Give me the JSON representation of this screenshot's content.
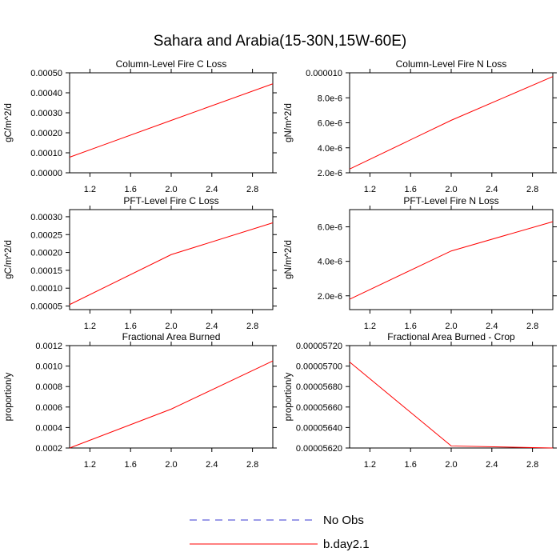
{
  "figure": {
    "title": "Sahara and Arabia(15-30N,15W-60E)"
  },
  "legend": {
    "entries": [
      {
        "label": "No Obs",
        "color": "#3a3ad0",
        "style": "dashed"
      },
      {
        "label": "b.day2.1",
        "color": "#ff0000",
        "style": "solid"
      }
    ]
  },
  "chart_data": [
    {
      "type": "line",
      "title": "Column-Level Fire C Loss",
      "xlabel": "",
      "ylabel": "gC/m^2/d",
      "xlim": [
        1.0,
        3.0
      ],
      "ylim": [
        0.0,
        0.0005
      ],
      "x_ticks": [
        1.2,
        1.6,
        2.0,
        2.4,
        2.8
      ],
      "x_tick_labels": [
        "1.2",
        "1.6",
        "2.0",
        "2.4",
        "2.8"
      ],
      "y_ticks": [
        0.0,
        0.0001,
        0.0002,
        0.0003,
        0.0004,
        0.0005
      ],
      "y_tick_labels": [
        "0.00000",
        "0.00010",
        "0.00020",
        "0.00030",
        "0.00040",
        "0.00050"
      ],
      "series": [
        {
          "name": "b.day2.1",
          "color": "#ff0000",
          "x": [
            1,
            2,
            3
          ],
          "values": [
            7.8e-05,
            0.000262,
            0.000445
          ]
        }
      ]
    },
    {
      "type": "line",
      "title": "Column-Level Fire N Loss",
      "xlabel": "",
      "ylabel": "gN/m^2/d",
      "xlim": [
        1.0,
        3.0
      ],
      "ylim": [
        2e-06,
        1e-05
      ],
      "x_ticks": [
        1.2,
        1.6,
        2.0,
        2.4,
        2.8
      ],
      "x_tick_labels": [
        "1.2",
        "1.6",
        "2.0",
        "2.4",
        "2.8"
      ],
      "y_ticks": [
        2e-06,
        4e-06,
        6e-06,
        8e-06,
        1e-05
      ],
      "y_tick_labels": [
        "2.0e-6",
        "4.0e-6",
        "6.0e-6",
        "8.0e-6",
        "0.000010"
      ],
      "series": [
        {
          "name": "b.day2.1",
          "color": "#ff0000",
          "x": [
            1,
            2,
            3
          ],
          "values": [
            2.3e-06,
            6.2e-06,
            9.7e-06
          ]
        }
      ]
    },
    {
      "type": "line",
      "title": "PFT-Level Fire C Loss",
      "xlabel": "",
      "ylabel": "gC/m^2/d",
      "xlim": [
        1.0,
        3.0
      ],
      "ylim": [
        4e-05,
        0.00032
      ],
      "x_ticks": [
        1.2,
        1.6,
        2.0,
        2.4,
        2.8
      ],
      "x_tick_labels": [
        "1.2",
        "1.6",
        "2.0",
        "2.4",
        "2.8"
      ],
      "y_ticks": [
        5e-05,
        0.0001,
        0.00015,
        0.0002,
        0.00025,
        0.0003
      ],
      "y_tick_labels": [
        "0.00005",
        "0.00010",
        "0.00015",
        "0.00020",
        "0.00025",
        "0.00030"
      ],
      "series": [
        {
          "name": "b.day2.1",
          "color": "#ff0000",
          "x": [
            1,
            2,
            3
          ],
          "values": [
            5.4e-05,
            0.000194,
            0.000283
          ]
        }
      ]
    },
    {
      "type": "line",
      "title": "PFT-Level Fire N Loss",
      "xlabel": "",
      "ylabel": "gN/m^2/d",
      "xlim": [
        1.0,
        3.0
      ],
      "ylim": [
        1.2e-06,
        7e-06
      ],
      "x_ticks": [
        1.2,
        1.6,
        2.0,
        2.4,
        2.8
      ],
      "x_tick_labels": [
        "1.2",
        "1.6",
        "2.0",
        "2.4",
        "2.8"
      ],
      "y_ticks": [
        2e-06,
        4e-06,
        6e-06
      ],
      "y_tick_labels": [
        "2.0e-6",
        "4.0e-6",
        "6.0e-6"
      ],
      "series": [
        {
          "name": "b.day2.1",
          "color": "#ff0000",
          "x": [
            1,
            2,
            3
          ],
          "values": [
            1.8e-06,
            4.6e-06,
            6.3e-06
          ]
        }
      ]
    },
    {
      "type": "line",
      "title": "Fractional Area Burned",
      "xlabel": "",
      "ylabel": "proportion/y",
      "xlim": [
        1.0,
        3.0
      ],
      "ylim": [
        0.0002,
        0.0012
      ],
      "x_ticks": [
        1.2,
        1.6,
        2.0,
        2.4,
        2.8
      ],
      "x_tick_labels": [
        "1.2",
        "1.6",
        "2.0",
        "2.4",
        "2.8"
      ],
      "y_ticks": [
        0.0002,
        0.0004,
        0.0006,
        0.0008,
        0.001,
        0.0012
      ],
      "y_tick_labels": [
        "0.0002",
        "0.0004",
        "0.0006",
        "0.0008",
        "0.0010",
        "0.0012"
      ],
      "series": [
        {
          "name": "b.day2.1",
          "color": "#ff0000",
          "x": [
            1,
            2,
            3
          ],
          "values": [
            0.0002,
            0.00058,
            0.00105
          ]
        }
      ]
    },
    {
      "type": "line",
      "title": "Fractional Area Burned - Crop",
      "xlabel": "",
      "ylabel": "proportion/y",
      "xlim": [
        1.0,
        3.0
      ],
      "ylim": [
        5.62e-05,
        5.72e-05
      ],
      "x_ticks": [
        1.2,
        1.6,
        2.0,
        2.4,
        2.8
      ],
      "x_tick_labels": [
        "1.2",
        "1.6",
        "2.0",
        "2.4",
        "2.8"
      ],
      "y_ticks": [
        5.62e-05,
        5.64e-05,
        5.66e-05,
        5.68e-05,
        5.7e-05,
        5.72e-05
      ],
      "y_tick_labels": [
        "0.00005620",
        "0.00005640",
        "0.00005660",
        "0.00005680",
        "0.00005700",
        "0.00005720"
      ],
      "series": [
        {
          "name": "b.day2.1",
          "color": "#ff0000",
          "x": [
            1,
            2,
            3
          ],
          "values": [
            5.704e-05,
            5.622e-05,
            5.62e-05
          ]
        }
      ]
    }
  ]
}
